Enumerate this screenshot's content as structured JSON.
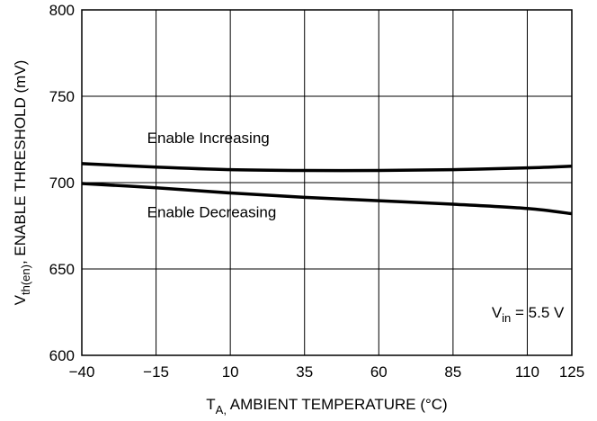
{
  "chart_data": {
    "type": "line",
    "xlabel": {
      "main": "T",
      "sub": "A,",
      "rest": " AMBIENT TEMPERATURE (°C)"
    },
    "ylabel": {
      "main": "V",
      "sub": "th(en)",
      "rest": ", ENABLE THRESHOLD (mV)"
    },
    "xlim": [
      -40,
      125
    ],
    "ylim": [
      600,
      800
    ],
    "x_ticks": [
      -40,
      -15,
      10,
      35,
      60,
      85,
      110,
      125
    ],
    "x_tick_labels": [
      "−40",
      "−15",
      "10",
      "35",
      "60",
      "85",
      "110",
      "125"
    ],
    "y_ticks": [
      600,
      650,
      700,
      750,
      800
    ],
    "y_tick_labels": [
      "600",
      "650",
      "700",
      "750",
      "800"
    ],
    "grid": true,
    "series": [
      {
        "name": "Enable Increasing",
        "x": [
          -40,
          -15,
          10,
          35,
          60,
          85,
          110,
          125
        ],
        "y": [
          711,
          709,
          707.5,
          707,
          707,
          707.5,
          708.5,
          709.5
        ]
      },
      {
        "name": "Enable Decreasing",
        "x": [
          -40,
          -15,
          10,
          35,
          60,
          85,
          110,
          125
        ],
        "y": [
          699.5,
          697,
          694,
          691.5,
          689.5,
          687.5,
          685,
          682
        ]
      }
    ],
    "annotations": [
      {
        "text": "Enable Increasing",
        "x": -18,
        "y": 723
      },
      {
        "text": "Enable Decreasing",
        "x": -18,
        "y": 680
      },
      {
        "main": "V",
        "sub": "in",
        "rest": " = 5.5 V",
        "x": 98,
        "y": 622
      }
    ],
    "line_color": "#000000"
  }
}
